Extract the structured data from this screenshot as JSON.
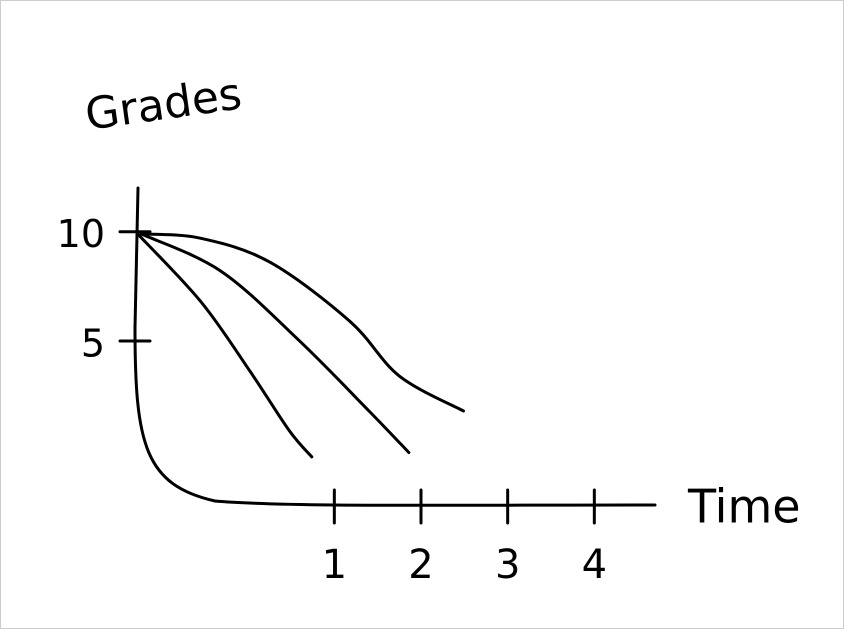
{
  "chart_data": {
    "type": "line",
    "y_label": "Grades",
    "x_label": "Time",
    "xlim": [
      -1.3,
      4.7
    ],
    "ylim": [
      -2.5,
      12
    ],
    "xticks": [
      1,
      2,
      3,
      4
    ],
    "yticks": [
      5,
      10
    ],
    "series": [
      {
        "color": "#000000",
        "x": [
          -1.27,
          -0.54,
          0.03,
          0.48,
          0.74
        ],
        "values": [
          9.9,
          6.8,
          3.6,
          0.9,
          -0.3
        ]
      },
      {
        "color": "#000000",
        "x": [
          -1.23,
          -0.31,
          0.6,
          1.4,
          1.86
        ],
        "values": [
          9.9,
          8.2,
          5.0,
          1.8,
          -0.1
        ]
      },
      {
        "color": "#000000",
        "x": [
          -1.23,
          -0.54,
          0.26,
          1.18,
          1.75,
          2.49
        ],
        "values": [
          9.9,
          9.7,
          8.6,
          5.9,
          3.4,
          1.8
        ]
      }
    ]
  }
}
